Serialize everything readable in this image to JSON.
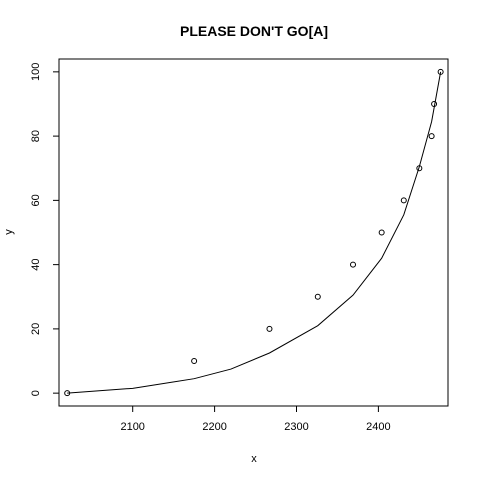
{
  "chart_data": {
    "type": "scatter",
    "title": "PLEASE DON'T GO[A]",
    "xlabel": "x",
    "ylabel": "y",
    "xlim": [
      2010,
      2485
    ],
    "ylim": [
      -4,
      104
    ],
    "xticks": [
      2100,
      2200,
      2300,
      2400
    ],
    "yticks": [
      0,
      20,
      40,
      60,
      80,
      100
    ],
    "points": [
      {
        "x": 2020,
        "y": 0
      },
      {
        "x": 2175,
        "y": 10
      },
      {
        "x": 2267,
        "y": 20
      },
      {
        "x": 2326,
        "y": 30
      },
      {
        "x": 2369,
        "y": 40
      },
      {
        "x": 2404,
        "y": 50
      },
      {
        "x": 2431,
        "y": 60
      },
      {
        "x": 2450,
        "y": 70
      },
      {
        "x": 2465,
        "y": 80
      },
      {
        "x": 2468,
        "y": 90
      },
      {
        "x": 2476,
        "y": 100
      }
    ],
    "fit_curve": [
      {
        "x": 2020,
        "y": 0
      },
      {
        "x": 2100,
        "y": 1.5
      },
      {
        "x": 2175,
        "y": 4.5
      },
      {
        "x": 2220,
        "y": 7.5
      },
      {
        "x": 2267,
        "y": 12.5
      },
      {
        "x": 2326,
        "y": 21
      },
      {
        "x": 2369,
        "y": 30.5
      },
      {
        "x": 2404,
        "y": 42
      },
      {
        "x": 2431,
        "y": 55.5
      },
      {
        "x": 2450,
        "y": 70.5
      },
      {
        "x": 2465,
        "y": 84.5
      },
      {
        "x": 2476,
        "y": 100
      }
    ],
    "grid": false,
    "legend": "none"
  }
}
